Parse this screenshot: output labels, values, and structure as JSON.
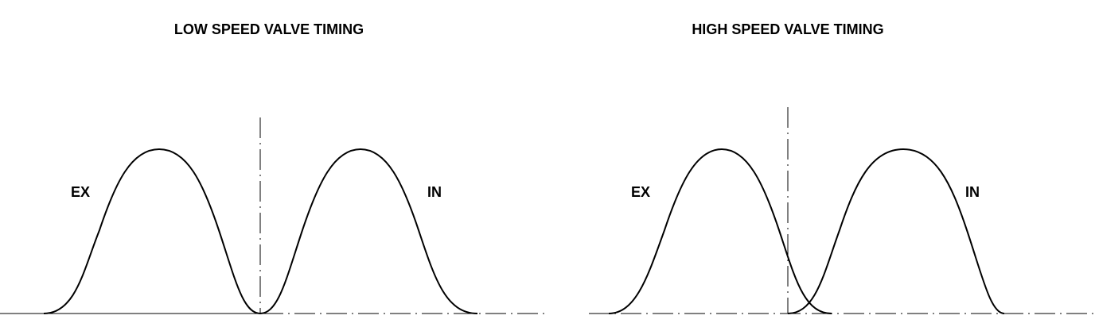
{
  "left": {
    "title": "LOW SPEED VALVE TIMING",
    "labels": [
      "EX",
      "IN"
    ]
  },
  "right": {
    "title": "HIGH SPEED VALVE TIMING",
    "labels": [
      "EX",
      "IN"
    ]
  }
}
